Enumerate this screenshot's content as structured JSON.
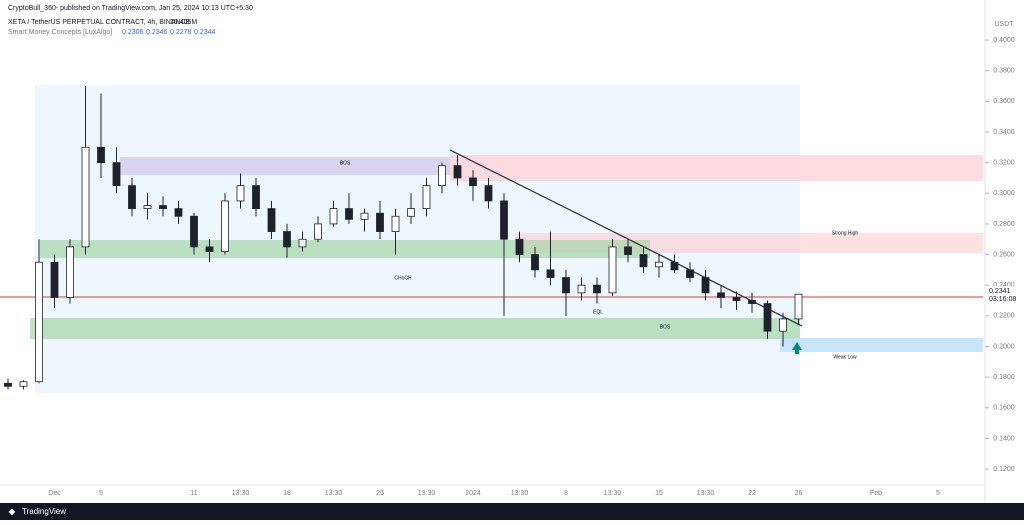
{
  "header": {
    "publisher": "CryptoBull_360- published on TradingView.com, Jan 25, 2024 10:13 UTC+5:30",
    "symbol": "XETA / TetherUS PERPETUAL CONTRACT, 4h, BINANCE",
    "volume": "15.406M",
    "indicator": "Smart Money Concepts [LuxAlgo]",
    "indicator_values": [
      "0.2306",
      "0.2346",
      "0.2278",
      "0.2344"
    ],
    "currency": "USDT"
  },
  "chart_data": {
    "type": "candlestick",
    "categories": [
      null,
      null,
      null,
      "Dec",
      null,
      null,
      "5",
      null,
      null,
      null,
      null,
      null,
      "11",
      null,
      null,
      "13:30",
      null,
      null,
      "18",
      null,
      null,
      "13:30",
      null,
      null,
      "25",
      null,
      null,
      "13:30",
      null,
      null,
      "2024",
      null,
      null,
      "13:30",
      null,
      null,
      "8",
      null,
      null,
      "13:30",
      null,
      null,
      "15",
      null,
      null,
      "13:30",
      null,
      null,
      "22",
      null,
      null,
      "26",
      null,
      null,
      null,
      null,
      "Feb",
      null,
      null,
      null,
      "5",
      null
    ],
    "open": [
      0.176,
      0.174,
      0.177,
      0.255,
      0.232,
      0.265,
      0.33,
      0.32,
      0.305,
      0.29,
      0.292,
      0.29,
      0.285,
      0.265,
      0.262,
      0.295,
      0.305,
      0.29,
      0.275,
      0.265,
      0.27,
      0.28,
      0.29,
      0.283,
      0.287,
      0.275,
      0.285,
      0.29,
      0.305,
      0.318,
      0.31,
      0.305,
      0.295,
      0.27,
      0.26,
      0.25,
      0.245,
      0.235,
      0.24,
      0.235,
      0.265,
      0.26,
      0.252,
      0.255,
      0.25,
      0.245,
      0.235,
      0.232,
      0.23,
      0.228,
      0.21,
      0.218,
      null,
      null,
      null,
      null,
      null,
      null,
      null,
      null,
      null,
      null
    ],
    "high": [
      0.179,
      0.178,
      0.27,
      0.26,
      0.27,
      0.37,
      0.365,
      0.33,
      0.31,
      0.3,
      0.298,
      0.295,
      0.287,
      0.27,
      0.3,
      0.313,
      0.31,
      0.295,
      0.28,
      0.275,
      0.285,
      0.295,
      0.3,
      0.29,
      0.295,
      0.29,
      0.3,
      0.31,
      0.32,
      0.325,
      0.315,
      0.31,
      0.3,
      0.275,
      0.265,
      0.275,
      0.25,
      0.245,
      0.245,
      0.27,
      0.27,
      0.265,
      0.26,
      0.26,
      0.255,
      0.25,
      0.24,
      0.236,
      0.235,
      0.23,
      0.222,
      0.234,
      null,
      null,
      null,
      null,
      null,
      null,
      null,
      null,
      null,
      null
    ],
    "low": [
      0.172,
      0.172,
      0.176,
      0.225,
      0.228,
      0.26,
      0.31,
      0.3,
      0.285,
      0.283,
      0.285,
      0.28,
      0.26,
      0.255,
      0.26,
      0.29,
      0.285,
      0.27,
      0.258,
      0.262,
      0.268,
      0.278,
      0.28,
      0.275,
      0.27,
      0.26,
      0.28,
      0.285,
      0.3,
      0.305,
      0.295,
      0.29,
      0.22,
      0.255,
      0.245,
      0.24,
      0.22,
      0.23,
      0.228,
      0.233,
      0.255,
      0.248,
      0.245,
      0.248,
      0.242,
      0.23,
      0.225,
      0.224,
      0.222,
      0.205,
      0.2,
      0.214,
      null,
      null,
      null,
      null,
      null,
      null,
      null,
      null,
      null,
      null
    ],
    "close": [
      0.174,
      0.177,
      0.255,
      0.232,
      0.265,
      0.33,
      0.32,
      0.305,
      0.29,
      0.292,
      0.29,
      0.285,
      0.265,
      0.262,
      0.295,
      0.305,
      0.29,
      0.275,
      0.265,
      0.27,
      0.28,
      0.29,
      0.283,
      0.287,
      0.275,
      0.285,
      0.29,
      0.305,
      0.318,
      0.31,
      0.305,
      0.295,
      0.27,
      0.26,
      0.25,
      0.245,
      0.235,
      0.24,
      0.235,
      0.265,
      0.26,
      0.252,
      0.255,
      0.25,
      0.245,
      0.235,
      0.232,
      0.23,
      0.228,
      0.21,
      0.218,
      0.2341,
      null,
      null,
      null,
      null,
      null,
      null,
      null,
      null,
      null,
      null
    ],
    "up_color": "#ffffff",
    "down_color": "#1e222d",
    "ylim": [
      0.1096,
      0.417
    ],
    "yticks": [
      {
        "value": 0.12,
        "label": "0.1200"
      },
      {
        "value": 0.14,
        "label": "0.1400"
      },
      {
        "value": 0.16,
        "label": "0.1600"
      },
      {
        "value": 0.18,
        "label": "0.1800"
      },
      {
        "value": 0.2,
        "label": "0.2000"
      },
      {
        "value": 0.22,
        "label": "0.2200"
      },
      {
        "value": 0.24,
        "label": "0.2400"
      },
      {
        "value": 0.26,
        "label": "0.2600"
      },
      {
        "value": 0.28,
        "label": "0.2800"
      },
      {
        "value": 0.3,
        "label": "0.3000"
      },
      {
        "value": 0.32,
        "label": "0.3200"
      },
      {
        "value": 0.34,
        "label": "0.3400"
      },
      {
        "value": 0.36,
        "label": "0.3600"
      },
      {
        "value": 0.38,
        "label": "0.3800"
      },
      {
        "value": 0.4,
        "label": "0.4000"
      }
    ],
    "countdown": "03:16:08",
    "annotations": [
      "BOS",
      "CHoCH",
      "BOS",
      "Strong High",
      "Weak Low",
      "EQL"
    ]
  },
  "footer": {
    "brand": "TradingView"
  }
}
